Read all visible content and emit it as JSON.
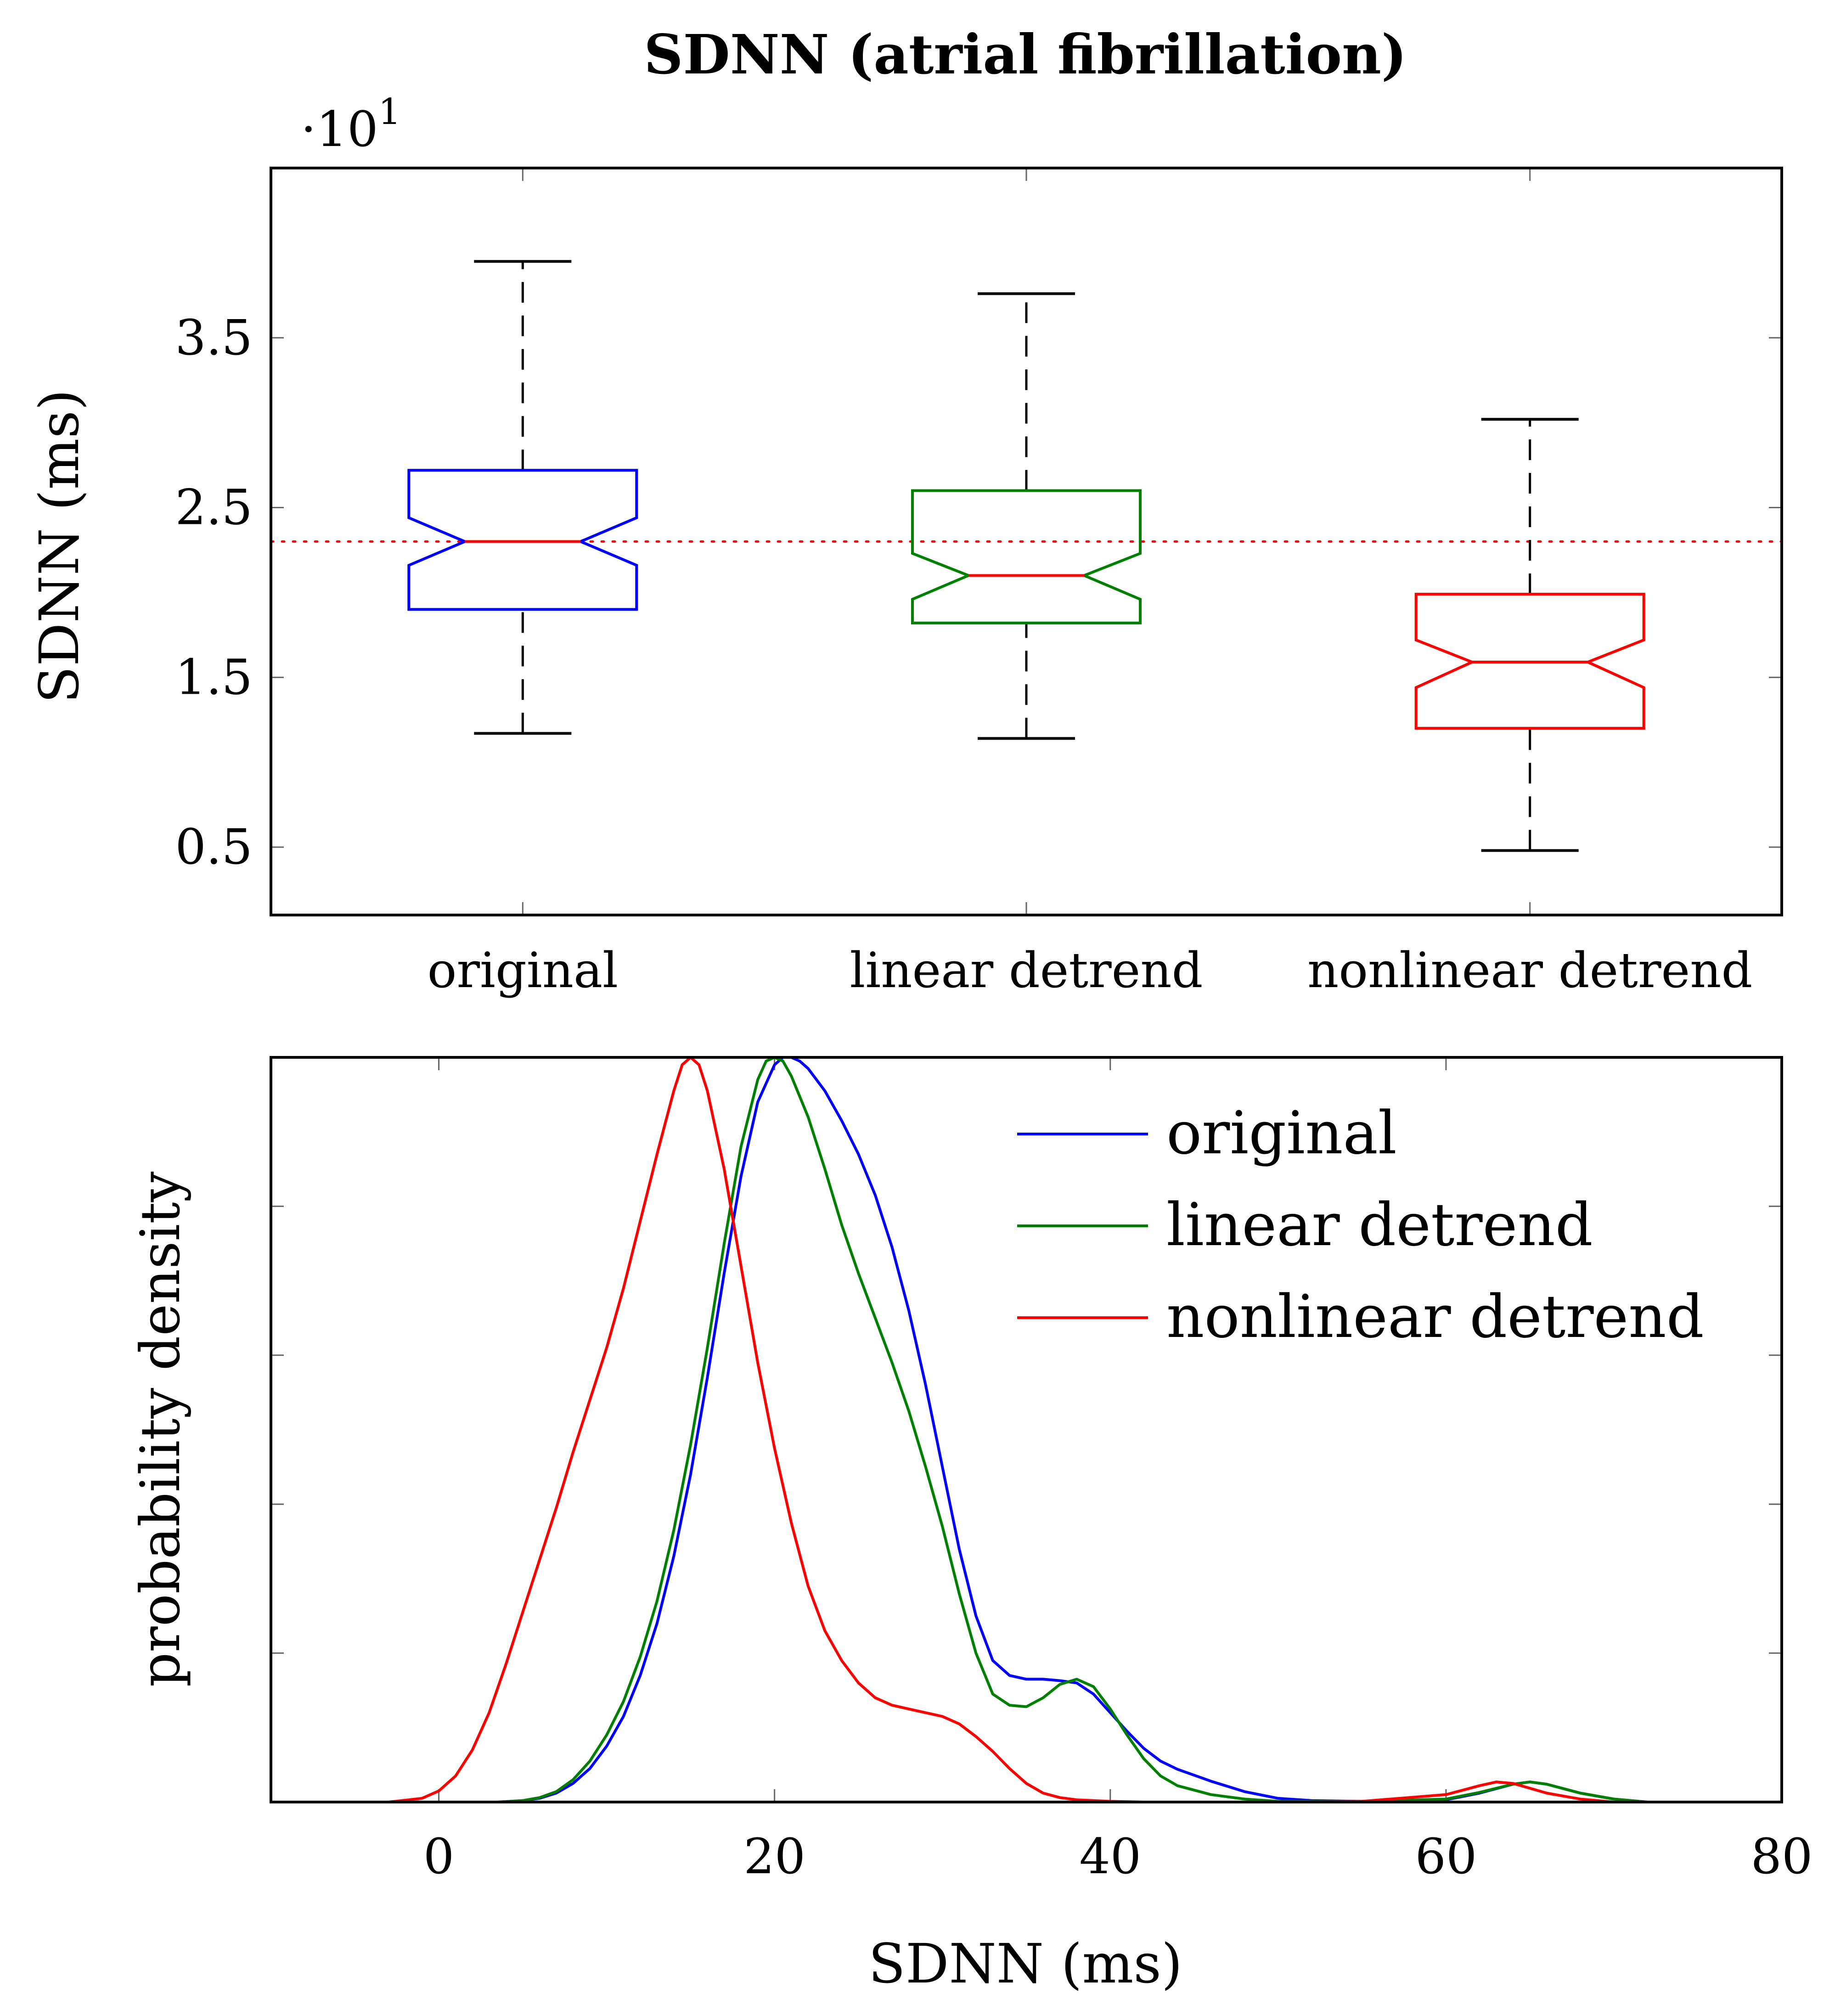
{
  "title": "SDNN (atrial fibrillation)",
  "colors": {
    "original": "#0000ff",
    "linear_detrend": "#008000",
    "nonlinear_detrend": "#ff0000",
    "median": "#ff0000",
    "whisker": "#000000"
  },
  "chart_data": [
    {
      "type": "boxplot",
      "notched": true,
      "ylabel": "SDNN (ms)",
      "ylabel_scale": "·10",
      "ylabel_scale_exponent": "1",
      "ylim": [
        0.1,
        4.5
      ],
      "ytick_values": [
        0.5,
        1.5,
        2.5,
        3.5
      ],
      "ytick_labels": [
        "0.5",
        "1.5",
        "2.5",
        "3.5"
      ],
      "reference_line": {
        "y": 2.3,
        "style": "dotted",
        "color": "#ff0000"
      },
      "categories": [
        "original",
        "linear detrend",
        "nonlinear detrend"
      ],
      "boxes": [
        {
          "name": "original",
          "color": "#0000ff",
          "whisker_low": 1.17,
          "q1": 1.9,
          "notch_low": 2.16,
          "median": 2.3,
          "notch_high": 2.44,
          "q3": 2.72,
          "whisker_high": 3.95
        },
        {
          "name": "linear detrend",
          "color": "#008000",
          "whisker_low": 1.14,
          "q1": 1.82,
          "notch_low": 1.96,
          "median": 2.1,
          "notch_high": 2.23,
          "q3": 2.6,
          "whisker_high": 3.76
        },
        {
          "name": "nonlinear detrend",
          "color": "#ff0000",
          "whisker_low": 0.48,
          "q1": 1.2,
          "notch_low": 1.44,
          "median": 1.59,
          "notch_high": 1.72,
          "q3": 1.99,
          "whisker_high": 3.02
        }
      ]
    },
    {
      "type": "line",
      "xlabel": "SDNN (ms)",
      "ylabel": "probability density",
      "xlim": [
        -10,
        80
      ],
      "ylim": [
        0,
        1
      ],
      "xtick_values": [
        0,
        20,
        40,
        60,
        80
      ],
      "xtick_labels": [
        "0",
        "20",
        "40",
        "60",
        "80"
      ],
      "ytick_values": [
        0.2,
        0.4,
        0.6,
        0.8
      ],
      "legend_position": "top-right",
      "series": [
        {
          "name": "original",
          "color": "#0000ff",
          "x": [
            3.5,
            5,
            6,
            7,
            8,
            9,
            10,
            11,
            12,
            13,
            14,
            15,
            16,
            17,
            18,
            19,
            20,
            20.5,
            21,
            21.5,
            22,
            23,
            24,
            25,
            26,
            27,
            28,
            29,
            30,
            31,
            32,
            33,
            34,
            35,
            36,
            37,
            38,
            39,
            40,
            41,
            42,
            43,
            44,
            46,
            48,
            50,
            52,
            55,
            60,
            62,
            64,
            65,
            66,
            68,
            70,
            72
          ],
          "y": [
            0,
            0.002,
            0.005,
            0.012,
            0.025,
            0.045,
            0.075,
            0.115,
            0.17,
            0.24,
            0.33,
            0.44,
            0.57,
            0.71,
            0.84,
            0.94,
            0.99,
            1.0,
            1.0,
            0.995,
            0.985,
            0.955,
            0.915,
            0.87,
            0.815,
            0.745,
            0.66,
            0.56,
            0.45,
            0.34,
            0.25,
            0.19,
            0.17,
            0.165,
            0.165,
            0.163,
            0.16,
            0.145,
            0.12,
            0.095,
            0.072,
            0.055,
            0.044,
            0.028,
            0.014,
            0.005,
            0.002,
            0.001,
            0.003,
            0.012,
            0.024,
            0.027,
            0.024,
            0.012,
            0.004,
            0
          ]
        },
        {
          "name": "linear detrend",
          "color": "#008000",
          "x": [
            3.5,
            5,
            6,
            7,
            8,
            9,
            10,
            11,
            12,
            13,
            14,
            15,
            16,
            17,
            18,
            19,
            19.5,
            20,
            20.5,
            21,
            22,
            23,
            24,
            25,
            26,
            27,
            28,
            29,
            30,
            31,
            32,
            33,
            34,
            35,
            36,
            37,
            38,
            39,
            40,
            41,
            42,
            43,
            44,
            46,
            48,
            50,
            52,
            55,
            60,
            62,
            64,
            65,
            66,
            68,
            70,
            72
          ],
          "y": [
            0,
            0.002,
            0.006,
            0.014,
            0.03,
            0.055,
            0.09,
            0.135,
            0.195,
            0.27,
            0.365,
            0.48,
            0.61,
            0.75,
            0.88,
            0.97,
            0.995,
            1.0,
            0.995,
            0.975,
            0.92,
            0.85,
            0.775,
            0.71,
            0.65,
            0.59,
            0.525,
            0.45,
            0.37,
            0.28,
            0.2,
            0.145,
            0.13,
            0.128,
            0.14,
            0.158,
            0.165,
            0.155,
            0.125,
            0.09,
            0.058,
            0.035,
            0.022,
            0.01,
            0.004,
            0.001,
            0.001,
            0.001,
            0.004,
            0.013,
            0.024,
            0.027,
            0.024,
            0.012,
            0.004,
            0
          ]
        },
        {
          "name": "nonlinear detrend",
          "color": "#ff0000",
          "x": [
            -3,
            -1,
            0,
            1,
            2,
            3,
            4,
            5,
            6,
            7,
            8,
            9,
            10,
            11,
            12,
            13,
            14,
            14.5,
            15,
            15.5,
            16,
            17,
            18,
            19,
            20,
            21,
            22,
            23,
            24,
            25,
            26,
            27,
            28,
            29,
            30,
            31,
            32,
            33,
            34,
            35,
            36,
            37,
            38,
            40,
            42,
            44,
            48,
            55,
            60,
            62,
            63,
            64,
            66,
            68,
            70
          ],
          "y": [
            0,
            0.005,
            0.015,
            0.035,
            0.07,
            0.12,
            0.185,
            0.255,
            0.325,
            0.395,
            0.47,
            0.54,
            0.61,
            0.69,
            0.78,
            0.87,
            0.955,
            0.99,
            1.0,
            0.99,
            0.955,
            0.85,
            0.72,
            0.59,
            0.475,
            0.375,
            0.29,
            0.23,
            0.19,
            0.16,
            0.14,
            0.13,
            0.125,
            0.12,
            0.115,
            0.105,
            0.088,
            0.068,
            0.045,
            0.025,
            0.012,
            0.006,
            0.003,
            0.001,
            0,
            0,
            0,
            0.001,
            0.01,
            0.022,
            0.027,
            0.025,
            0.012,
            0.004,
            0
          ]
        }
      ]
    }
  ]
}
